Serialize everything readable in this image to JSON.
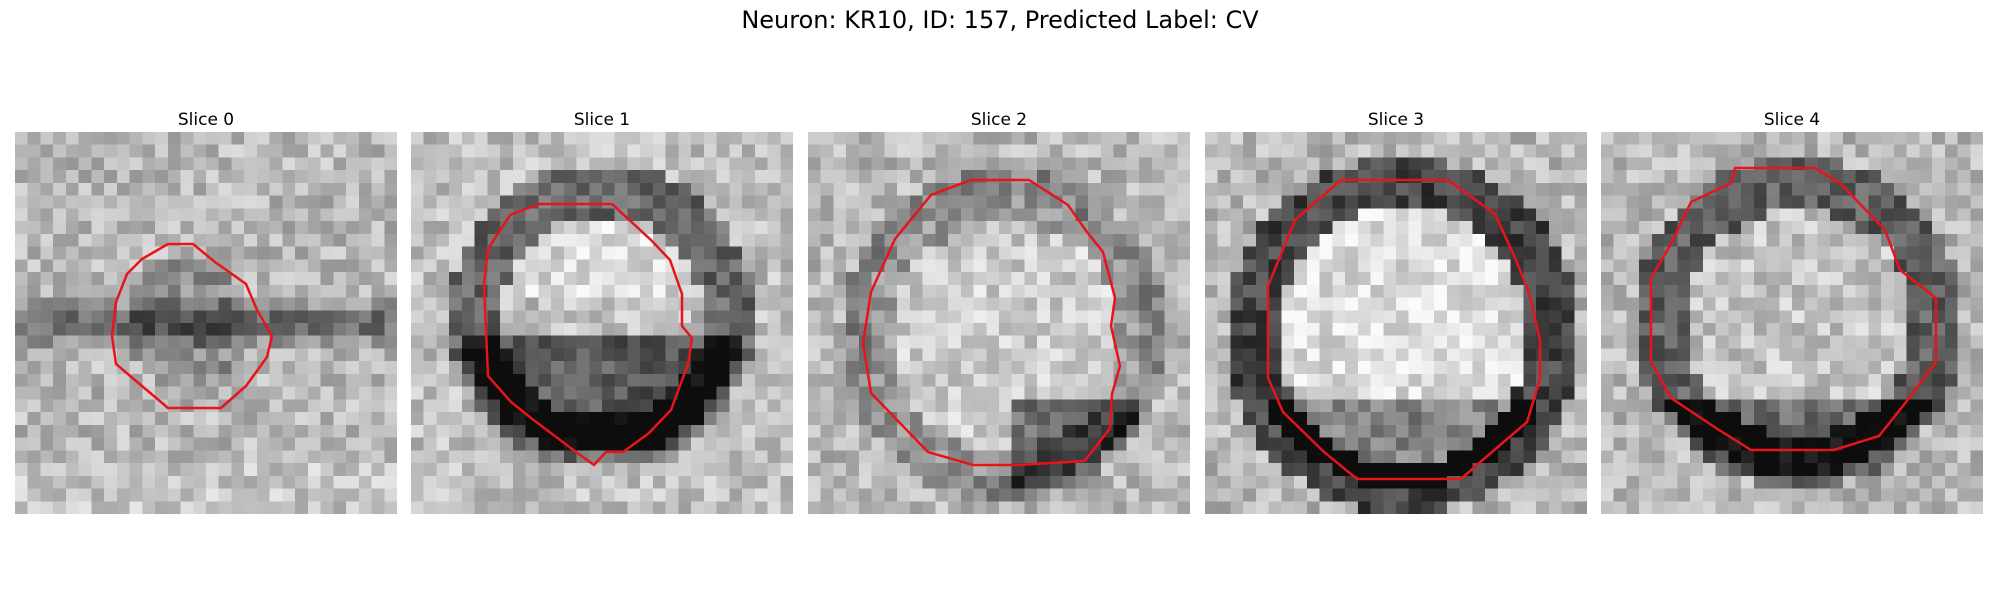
{
  "figure": {
    "title": "Neuron: KR10, ID: 157, Predicted Label: CV",
    "outline_color": "#e8141a",
    "colormap": "gray"
  },
  "panels": [
    {
      "title": "Slice 0"
    },
    {
      "title": "Slice 1"
    },
    {
      "title": "Slice 2"
    },
    {
      "title": "Slice 3"
    },
    {
      "title": "Slice 4"
    }
  ]
}
